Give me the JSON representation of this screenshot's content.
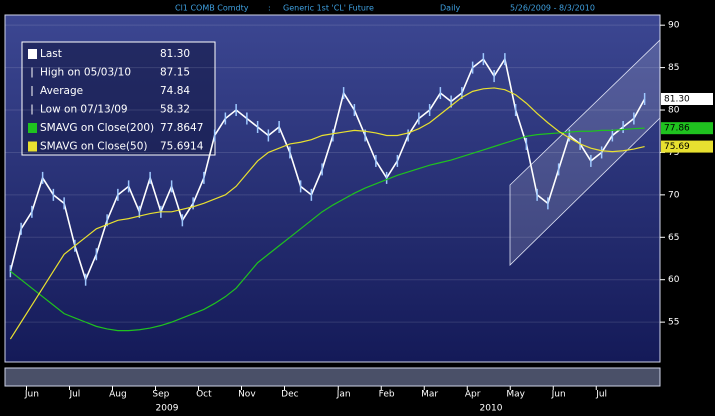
{
  "chart_data": {
    "type": "line",
    "title_bar": [
      "Cl1 COMB Comdty",
      ":",
      "Generic 1st 'CL' Future",
      "Daily",
      "5/26/2009 - 8/3/2010"
    ],
    "categories": [
      null,
      null,
      "Jun",
      null,
      null,
      null,
      "Jul",
      null,
      null,
      null,
      "Aug",
      null,
      null,
      null,
      "Sep",
      null,
      null,
      null,
      "Oct",
      null,
      null,
      null,
      "Nov",
      null,
      null,
      null,
      "Dec",
      null,
      null,
      null,
      null,
      "Jan",
      null,
      null,
      null,
      "Feb",
      null,
      null,
      null,
      "Mar",
      null,
      null,
      null,
      "Apr",
      null,
      null,
      null,
      "May",
      null,
      null,
      null,
      "Jun",
      null,
      null,
      null,
      "Jul",
      null,
      null,
      null,
      null
    ],
    "years": [
      "2009",
      "2010"
    ],
    "series": [
      {
        "name": "Last",
        "color": "#ffffff",
        "summary": "81.30",
        "end_label": {
          "value": 81.3,
          "label": "81.30"
        },
        "values": [
          61,
          66,
          68,
          72,
          70,
          69,
          64,
          60,
          63,
          67,
          70,
          71,
          68,
          72,
          68,
          71,
          67,
          69,
          72,
          77,
          79,
          80,
          79,
          78,
          77,
          78,
          75,
          71,
          70,
          73,
          77,
          82,
          80,
          77,
          74,
          72,
          74,
          77,
          79,
          80,
          82,
          81,
          82,
          85,
          86,
          84,
          86,
          80,
          76,
          70,
          69,
          73,
          77,
          76,
          74,
          75,
          77,
          78,
          79,
          81.3
        ]
      },
      {
        "name": "SMAVG on Close(200)",
        "color": "#1fc21f",
        "summary": "77.8647",
        "end_label": {
          "value": 77.86,
          "label": "77.86"
        },
        "values": [
          61,
          60,
          59,
          58,
          57,
          56,
          55.5,
          55,
          54.5,
          54.2,
          54,
          54,
          54.1,
          54.3,
          54.6,
          55,
          55.5,
          56,
          56.5,
          57.2,
          58,
          59,
          60.5,
          62,
          63,
          64,
          65,
          66,
          67,
          68,
          68.8,
          69.5,
          70.2,
          70.8,
          71.3,
          71.8,
          72.3,
          72.7,
          73.1,
          73.5,
          73.8,
          74.1,
          74.5,
          74.9,
          75.3,
          75.7,
          76.1,
          76.5,
          76.9,
          77.1,
          77.2,
          77.3,
          77.4,
          77.5,
          77.5,
          77.6,
          77.6,
          77.7,
          77.8,
          77.8647
        ]
      },
      {
        "name": "SMAVG on Close(50)",
        "color": "#e8e030",
        "summary": "75.6914",
        "end_label": {
          "value": 75.69,
          "label": "75.69"
        },
        "values": [
          53,
          55,
          57,
          59,
          61,
          63,
          64,
          65,
          66,
          66.5,
          67,
          67.2,
          67.5,
          67.8,
          68,
          68,
          68.3,
          68.6,
          69,
          69.5,
          70,
          71,
          72.5,
          74,
          75,
          75.5,
          76,
          76.2,
          76.5,
          77,
          77.2,
          77.4,
          77.6,
          77.5,
          77.3,
          77,
          77,
          77.3,
          77.8,
          78.5,
          79.5,
          80.5,
          81.5,
          82.2,
          82.5,
          82.6,
          82.4,
          81.8,
          80.8,
          79.6,
          78.5,
          77.5,
          76.7,
          76,
          75.5,
          75.2,
          75.1,
          75.2,
          75.4,
          75.6914
        ]
      }
    ],
    "stats": [
      {
        "label": "High on 05/03/10",
        "value": "87.15"
      },
      {
        "label": "Average",
        "value": "74.84"
      },
      {
        "label": "Low on 07/13/09",
        "value": "58.32"
      }
    ],
    "ylim": [
      50.3,
      91.2
    ],
    "yticks": [
      55,
      60,
      65,
      70,
      75,
      80,
      85,
      90
    ],
    "grid": true
  }
}
